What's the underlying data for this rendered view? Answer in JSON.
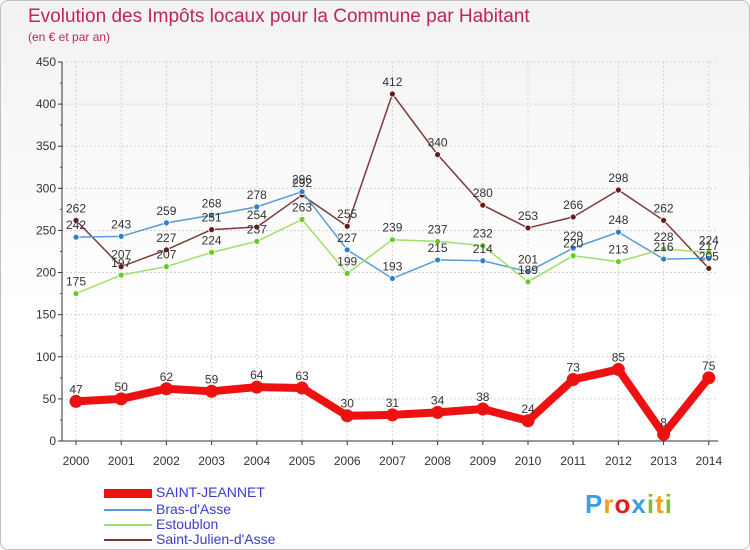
{
  "title": "Evolution des Impôts locaux pour la Commune par Habitant",
  "subtitle": "(en € et par an)",
  "logo": {
    "text": "Proxiti",
    "letters": [
      "P",
      "r",
      "o",
      "x",
      "i",
      "t",
      "i"
    ],
    "colors": [
      "#3aa0e0",
      "#f0a020",
      "#e02020",
      "#3aa0e0",
      "#80c030",
      "#f0a020",
      "#80c030"
    ]
  },
  "chart_data": {
    "type": "line",
    "title": "Evolution des Impôts locaux pour la Commune par Habitant",
    "subtitle": "(en € et par an)",
    "categories": [
      "2000",
      "2001",
      "2002",
      "2003",
      "2004",
      "2005",
      "2006",
      "2007",
      "2008",
      "2009",
      "2010",
      "2011",
      "2012",
      "2013",
      "2014"
    ],
    "ylim": [
      0,
      450
    ],
    "yticks": [
      0,
      50,
      100,
      150,
      200,
      250,
      300,
      350,
      400,
      450
    ],
    "grid": true,
    "series": [
      {
        "name": "SAINT-JEANNET",
        "color": "#ee1111",
        "bold": true,
        "values": [
          47,
          50,
          62,
          59,
          64,
          63,
          30,
          31,
          34,
          38,
          24,
          73,
          85,
          8,
          75
        ],
        "labels": [
          "47",
          "50",
          "62",
          "59",
          "64",
          "63",
          "30",
          "31",
          "34",
          "38",
          "24",
          "73",
          "85",
          "8",
          "75"
        ]
      },
      {
        "name": "Bras-d'Asse",
        "color": "#5b9bd5",
        "point": "#2f7fc8",
        "values": [
          242,
          243,
          259,
          268,
          278,
          296,
          227,
          193,
          215,
          214,
          201,
          229,
          248,
          216,
          217
        ],
        "labels": [
          "242",
          "243",
          "259",
          "268",
          "278",
          "296",
          "227",
          "193",
          "215",
          "214",
          "201",
          "229",
          "248",
          "216",
          "217"
        ]
      },
      {
        "name": "Estoublon",
        "color": "#9ee06a",
        "point": "#66cc22",
        "values": [
          175,
          197,
          207,
          224,
          237,
          263,
          199,
          239,
          237,
          232,
          189,
          220,
          213,
          228,
          224
        ],
        "labels": [
          "175",
          "197",
          "207",
          "224",
          "237",
          "263",
          "199",
          "239",
          "237",
          "232",
          "189",
          "220",
          "213",
          "228",
          "224"
        ]
      },
      {
        "name": "Saint-Julien-d'Asse",
        "color": "#7a3a3a",
        "point": "#6a1a1a",
        "values": [
          262,
          207,
          227,
          251,
          254,
          292,
          255,
          412,
          340,
          280,
          253,
          266,
          298,
          262,
          205
        ],
        "labels": [
          "262",
          "207",
          "227",
          "251",
          "254",
          "292",
          "255",
          "412",
          "340",
          "280",
          "253",
          "266",
          "298",
          "262",
          "205"
        ]
      }
    ]
  }
}
